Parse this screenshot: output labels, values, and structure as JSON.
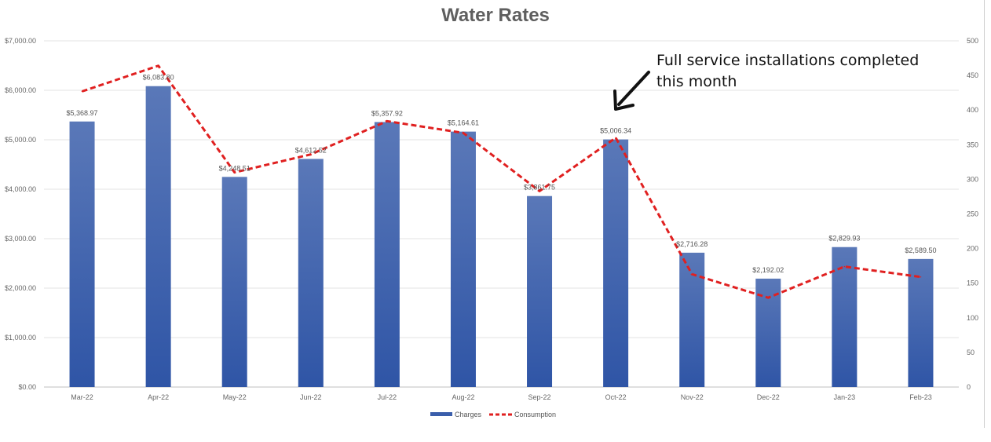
{
  "chart_data": {
    "type": "bar",
    "title": "Water Rates",
    "categories": [
      "Mar-22",
      "Apr-22",
      "May-22",
      "Jun-22",
      "Jul-22",
      "Aug-22",
      "Sep-22",
      "Oct-22",
      "Nov-22",
      "Dec-22",
      "Jan-23",
      "Feb-23"
    ],
    "series": [
      {
        "name": "Charges",
        "type": "bar",
        "axis": "left",
        "color": "#3a5eab",
        "values": [
          5368.97,
          6083.8,
          4248.51,
          4612.52,
          5357.92,
          5164.61,
          3861.75,
          5006.34,
          2716.28,
          2192.02,
          2829.93,
          2589.5
        ],
        "labels": [
          "$5,368.97",
          "$6,083.80",
          "$4,248.51",
          "$4,612.52",
          "$5,357.92",
          "$5,164.61",
          "$3,861.75",
          "$5,006.34",
          "$2,716.28",
          "$2,192.02",
          "$2,829.93",
          "$2,589.50"
        ]
      },
      {
        "name": "Consumption",
        "type": "line",
        "axis": "right",
        "style": "dashed",
        "color": "#e02020",
        "values": [
          427,
          464,
          310,
          336,
          384,
          367,
          283,
          360,
          163,
          129,
          174,
          159
        ]
      }
    ],
    "y_left": {
      "range": [
        0,
        7000
      ],
      "ticks": [
        "$0.00",
        "$1,000.00",
        "$2,000.00",
        "$3,000.00",
        "$4,000.00",
        "$5,000.00",
        "$6,000.00",
        "$7,000.00"
      ]
    },
    "y_right": {
      "range": [
        0,
        500
      ],
      "ticks": [
        "0",
        "50",
        "100",
        "150",
        "200",
        "250",
        "300",
        "350",
        "400",
        "450",
        "500"
      ]
    },
    "grid": true,
    "legend": "bottom",
    "annotation": {
      "text_line1": "Full service installations completed",
      "text_line2": "this month",
      "target_category": "Oct-22"
    }
  }
}
